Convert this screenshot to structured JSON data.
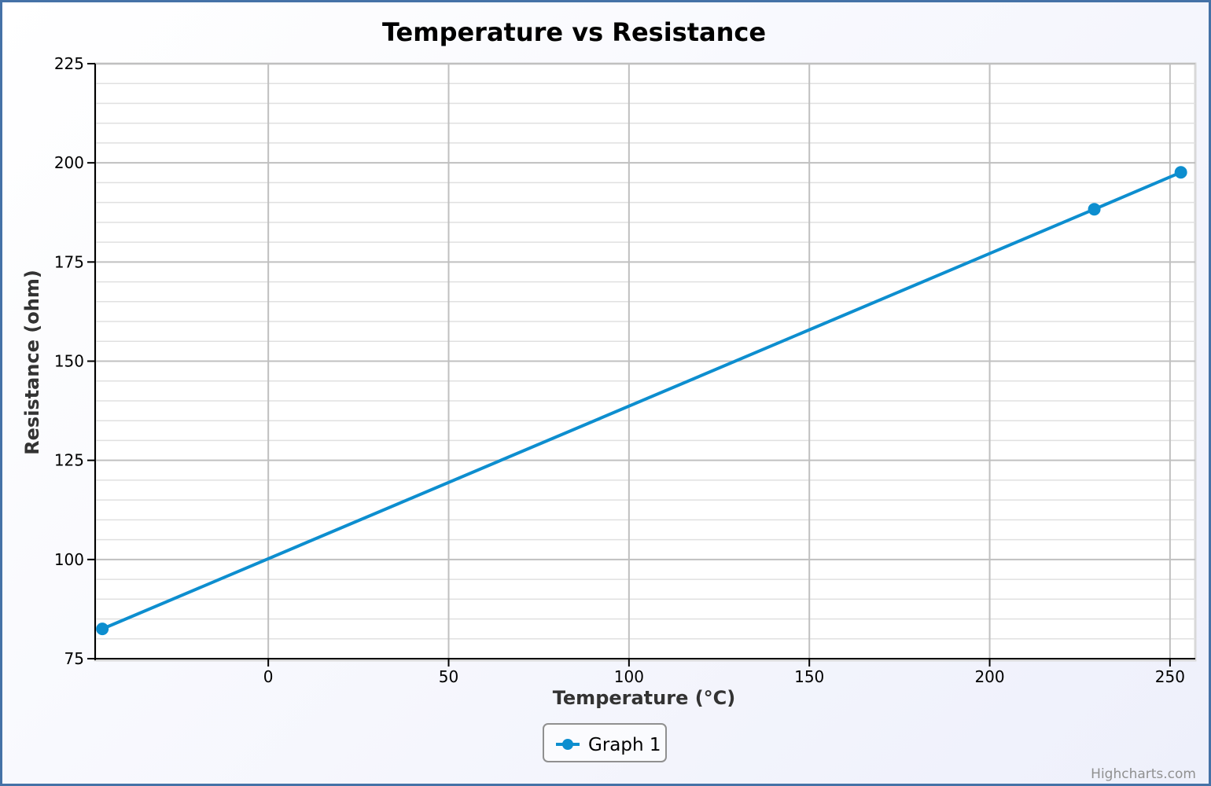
{
  "chart_data": {
    "type": "line",
    "title": "Temperature vs Resistance",
    "xlabel": "Temperature (°C)",
    "ylabel": "Resistance (ohm)",
    "xlim": [
      -48,
      257
    ],
    "ylim": [
      75,
      225
    ],
    "x_ticks": [
      0,
      50,
      100,
      150,
      200,
      250
    ],
    "y_ticks": [
      75,
      100,
      125,
      150,
      175,
      200,
      225
    ],
    "y_minor_step": 5,
    "grid": true,
    "legend_position": "bottom-center",
    "series": [
      {
        "name": "Graph 1",
        "color": "#0d8ecf",
        "marker": "circle",
        "points": [
          {
            "x": -46,
            "y": 82.5
          },
          {
            "x": 229,
            "y": 188.3
          },
          {
            "x": 253,
            "y": 197.6
          }
        ]
      }
    ]
  },
  "credits": "Highcharts.com",
  "colors": {
    "frame_border": "#4572a7",
    "grid_major": "#c0c0c0",
    "grid_minor": "#e0e0e0",
    "axis_line": "#000000"
  }
}
